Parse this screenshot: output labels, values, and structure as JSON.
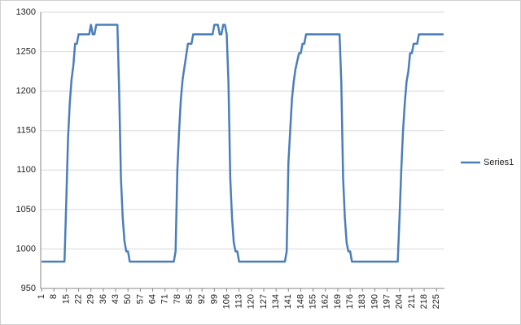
{
  "chart_data": {
    "type": "line",
    "x": [
      1,
      2,
      3,
      4,
      5,
      6,
      7,
      8,
      9,
      10,
      11,
      12,
      13,
      14,
      15,
      16,
      17,
      18,
      19,
      20,
      21,
      22,
      23,
      24,
      25,
      26,
      27,
      28,
      29,
      30,
      31,
      32,
      33,
      34,
      35,
      36,
      37,
      38,
      39,
      40,
      41,
      42,
      43,
      44,
      45,
      46,
      47,
      48,
      49,
      50,
      51,
      52,
      53,
      54,
      55,
      56,
      57,
      58,
      59,
      60,
      61,
      62,
      63,
      64,
      65,
      66,
      67,
      68,
      69,
      70,
      71,
      72,
      73,
      74,
      75,
      76,
      77,
      78,
      79,
      80,
      81,
      82,
      83,
      84,
      85,
      86,
      87,
      88,
      89,
      90,
      91,
      92,
      93,
      94,
      95,
      96,
      97,
      98,
      99,
      100,
      101,
      102,
      103,
      104,
      105,
      106,
      107,
      108,
      109,
      110,
      111,
      112,
      113,
      114,
      115,
      116,
      117,
      118,
      119,
      120,
      121,
      122,
      123,
      124,
      125,
      126,
      127,
      128,
      129,
      130,
      131,
      132,
      133,
      134,
      135,
      136,
      137,
      138,
      139,
      140,
      141,
      142,
      143,
      144,
      145,
      146,
      147,
      148,
      149,
      150,
      151,
      152,
      153,
      154,
      155,
      156,
      157,
      158,
      159,
      160,
      161,
      162,
      163,
      164,
      165,
      166,
      167,
      168,
      169,
      170,
      171,
      172,
      173,
      174,
      175,
      176,
      177,
      178,
      179,
      180,
      181,
      182,
      183,
      184,
      185,
      186,
      187,
      188,
      189,
      190,
      191,
      192,
      193,
      194,
      195,
      196,
      197,
      198,
      199,
      200,
      201,
      202,
      203,
      204,
      205,
      206,
      207,
      208,
      209,
      210,
      211,
      212,
      213,
      214,
      215,
      216,
      217,
      218,
      219,
      220,
      221,
      222,
      223,
      224,
      225,
      226,
      227,
      228,
      229
    ],
    "series": [
      {
        "name": "Series1",
        "color": "#4a7ebb",
        "values": [
          984,
          984,
          984,
          984,
          984,
          984,
          984,
          984,
          984,
          984,
          984,
          984,
          984,
          984,
          1060,
          1140,
          1185,
          1215,
          1232,
          1260,
          1260,
          1272,
          1272,
          1272,
          1272,
          1272,
          1272,
          1272,
          1284,
          1272,
          1272,
          1284,
          1284,
          1284,
          1284,
          1284,
          1284,
          1284,
          1284,
          1284,
          1284,
          1284,
          1284,
          1284,
          1200,
          1090,
          1040,
          1010,
          997,
          997,
          984,
          984,
          984,
          984,
          984,
          984,
          984,
          984,
          984,
          984,
          984,
          984,
          984,
          984,
          984,
          984,
          984,
          984,
          984,
          984,
          984,
          984,
          984,
          984,
          984,
          984,
          997,
          1100,
          1150,
          1190,
          1215,
          1230,
          1245,
          1260,
          1260,
          1260,
          1272,
          1272,
          1272,
          1272,
          1272,
          1272,
          1272,
          1272,
          1272,
          1272,
          1272,
          1272,
          1284,
          1284,
          1284,
          1272,
          1272,
          1284,
          1284,
          1272,
          1210,
          1090,
          1040,
          1008,
          997,
          997,
          984,
          984,
          984,
          984,
          984,
          984,
          984,
          984,
          984,
          984,
          984,
          984,
          984,
          984,
          984,
          984,
          984,
          984,
          984,
          984,
          984,
          984,
          984,
          984,
          984,
          984,
          984,
          997,
          1110,
          1150,
          1190,
          1212,
          1228,
          1238,
          1248,
          1248,
          1260,
          1260,
          1272,
          1272,
          1272,
          1272,
          1272,
          1272,
          1272,
          1272,
          1272,
          1272,
          1272,
          1272,
          1272,
          1272,
          1272,
          1272,
          1272,
          1272,
          1272,
          1272,
          1210,
          1090,
          1040,
          1008,
          997,
          997,
          984,
          984,
          984,
          984,
          984,
          984,
          984,
          984,
          984,
          984,
          984,
          984,
          984,
          984,
          984,
          984,
          984,
          984,
          984,
          984,
          984,
          984,
          984,
          984,
          984,
          984,
          984,
          1040,
          1100,
          1150,
          1185,
          1212,
          1225,
          1248,
          1248,
          1260,
          1260,
          1260,
          1272,
          1272,
          1272,
          1272,
          1272,
          1272,
          1272,
          1272,
          1272,
          1272,
          1272,
          1272,
          1272,
          1272,
          1272
        ]
      }
    ],
    "xlim": [
      0.5,
      229.5
    ],
    "xticks": [
      1,
      8,
      15,
      22,
      29,
      36,
      43,
      50,
      57,
      64,
      71,
      78,
      85,
      92,
      99,
      106,
      113,
      120,
      127,
      134,
      141,
      148,
      155,
      162,
      169,
      176,
      183,
      190,
      197,
      204,
      211,
      218,
      225
    ],
    "ylim": [
      950,
      1300
    ],
    "yticks": [
      950,
      1000,
      1050,
      1100,
      1150,
      1200,
      1250,
      1300
    ],
    "grid": true,
    "legend": "right"
  }
}
